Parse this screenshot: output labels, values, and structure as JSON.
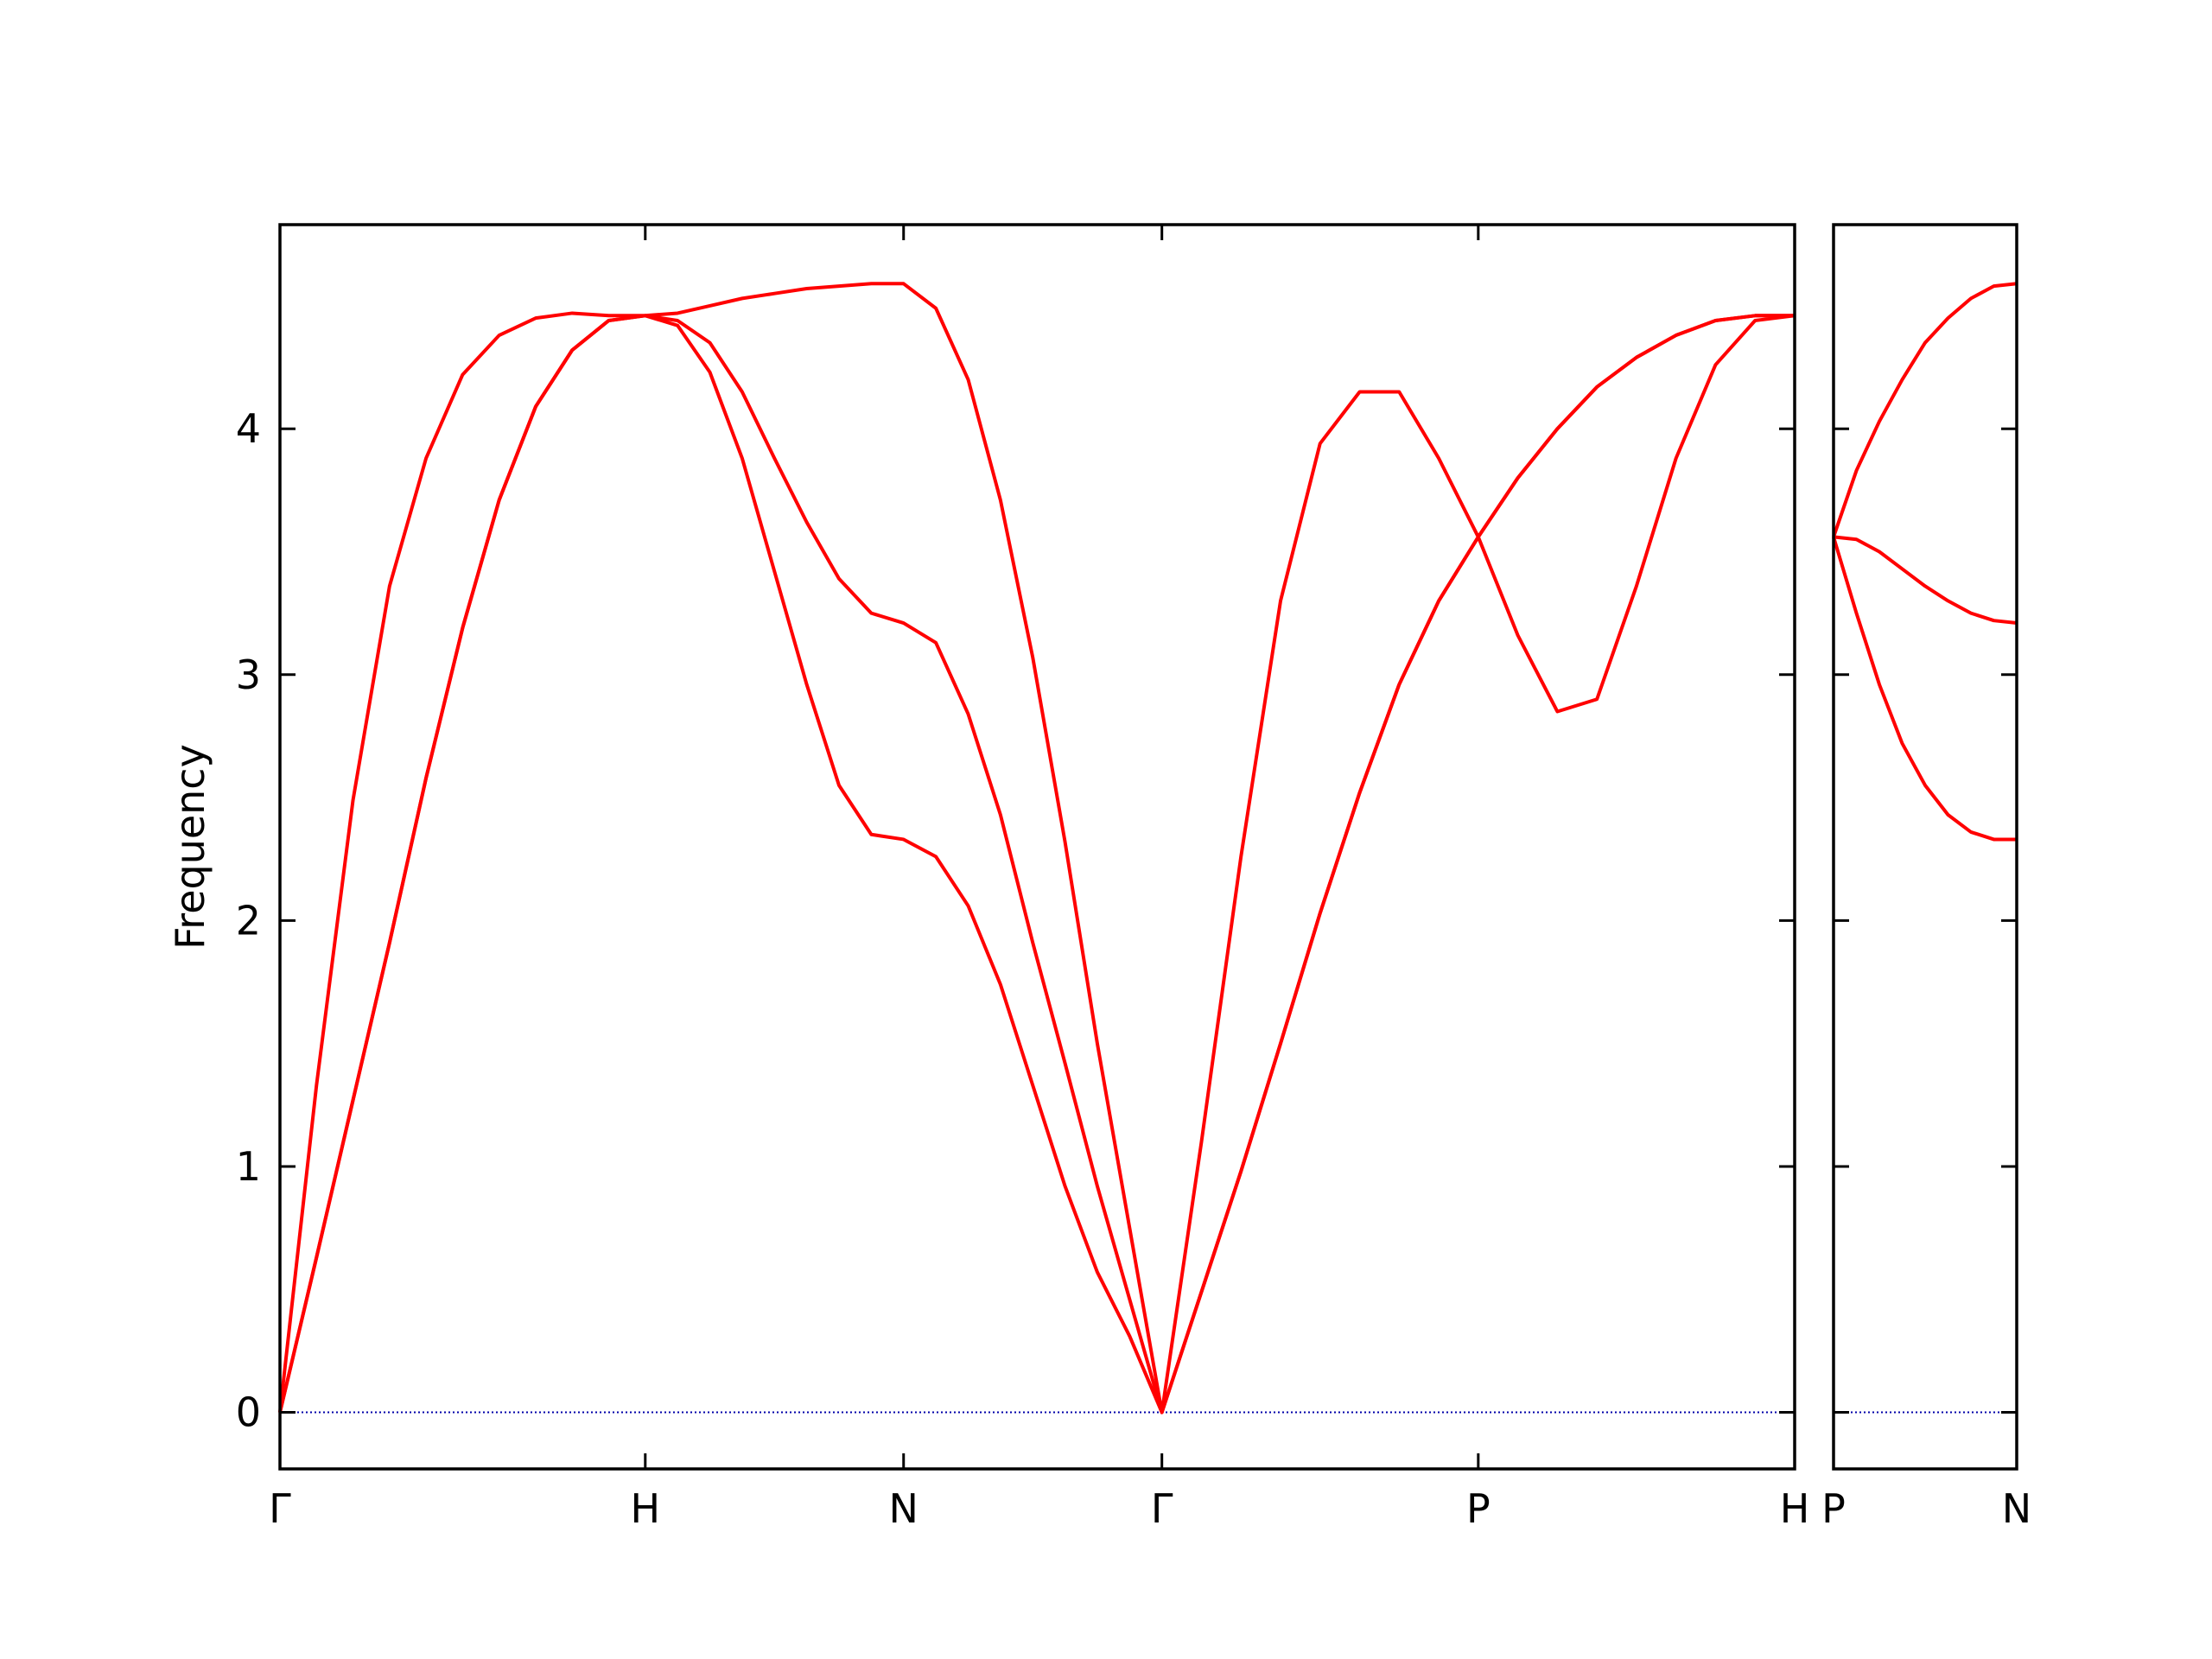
{
  "chart_data": [
    {
      "type": "line",
      "ylabel": "Frequency",
      "x": [
        0,
        0.1,
        0.2,
        0.3,
        0.4,
        0.5,
        0.6,
        0.7,
        0.8,
        0.9,
        1.0,
        1.0884,
        1.1768,
        1.2652,
        1.3536,
        1.4419,
        1.5303,
        1.6187,
        1.7071,
        1.7955,
        1.8839,
        1.9723,
        2.0607,
        2.149,
        2.2374,
        2.3258,
        2.4142,
        2.5225,
        2.6307,
        2.739,
        2.8472,
        2.9555,
        3.0637,
        3.172,
        3.2802,
        3.3885,
        3.4967,
        3.605,
        3.7132,
        3.8215,
        3.9297,
        4.038,
        4.1463
      ],
      "series": [
        {
          "color": "#ff0000",
          "values": [
            0,
            0.63,
            1.27,
            1.91,
            2.58,
            3.19,
            3.71,
            4.09,
            4.32,
            4.44,
            4.46,
            4.42,
            4.23,
            3.88,
            3.42,
            2.96,
            2.55,
            2.35,
            2.33,
            2.26,
            2.06,
            1.74,
            1.33,
            0.92,
            0.57,
            0.31,
            0,
            0.49,
            0.98,
            1.5,
            2.03,
            2.52,
            2.96,
            3.3,
            3.56,
            3.8,
            4.0,
            4.17,
            4.29,
            4.38,
            4.44,
            4.46,
            4.46
          ]
        },
        {
          "color": "#ff0000",
          "values": [
            0,
            0.63,
            1.27,
            1.91,
            2.58,
            3.19,
            3.71,
            4.09,
            4.32,
            4.44,
            4.46,
            4.44,
            4.35,
            4.15,
            3.88,
            3.62,
            3.39,
            3.25,
            3.21,
            3.13,
            2.84,
            2.43,
            1.91,
            1.42,
            0.92,
            0.46,
            0,
            0.49,
            0.98,
            1.5,
            2.03,
            2.52,
            2.96,
            3.3,
            3.56,
            3.8,
            4.0,
            4.17,
            4.29,
            4.38,
            4.44,
            4.46,
            4.46
          ]
        },
        {
          "color": "#ff0000",
          "values": [
            0,
            1.33,
            2.49,
            3.36,
            3.88,
            4.22,
            4.38,
            4.45,
            4.47,
            4.46,
            4.46,
            4.47,
            4.5,
            4.53,
            4.55,
            4.57,
            4.58,
            4.59,
            4.59,
            4.49,
            4.2,
            3.71,
            3.07,
            2.32,
            1.5,
            0.75,
            0,
            1.1,
            2.26,
            3.3,
            3.94,
            4.15,
            4.15,
            3.88,
            3.56,
            3.16,
            2.85,
            2.9,
            3.36,
            3.88,
            4.26,
            4.44,
            4.46
          ]
        }
      ],
      "xlim": [
        0,
        4.1463
      ],
      "xticks": [
        {
          "value": 0,
          "label": "Γ"
        },
        {
          "value": 1.0,
          "label": "H"
        },
        {
          "value": 1.7071,
          "label": "N"
        },
        {
          "value": 2.4142,
          "label": "Γ"
        },
        {
          "value": 3.2802,
          "label": "P"
        },
        {
          "value": 4.1463,
          "label": "H"
        }
      ],
      "ylim": [
        -0.23,
        4.83
      ],
      "yticks": [
        0,
        1,
        2,
        3,
        4
      ],
      "hlines": [
        {
          "value": 0,
          "color": "#0000aa"
        }
      ]
    },
    {
      "type": "line",
      "x": [
        0,
        0.0625,
        0.125,
        0.1875,
        0.25,
        0.3125,
        0.375,
        0.4375,
        0.5
      ],
      "series": [
        {
          "color": "#ff0000",
          "values": [
            3.56,
            3.83,
            4.03,
            4.2,
            4.35,
            4.45,
            4.53,
            4.58,
            4.59
          ]
        },
        {
          "color": "#ff0000",
          "values": [
            3.56,
            3.55,
            3.5,
            3.43,
            3.36,
            3.3,
            3.25,
            3.22,
            3.21
          ]
        },
        {
          "color": "#ff0000",
          "values": [
            3.56,
            3.25,
            2.96,
            2.72,
            2.55,
            2.43,
            2.36,
            2.33,
            2.33
          ]
        }
      ],
      "xlim": [
        0,
        0.5
      ],
      "xticks": [
        {
          "value": 0,
          "label": "P"
        },
        {
          "value": 0.5,
          "label": "N"
        }
      ],
      "ylim": [
        -0.23,
        4.83
      ],
      "yticks": [
        0,
        1,
        2,
        3,
        4
      ],
      "hlines": [
        {
          "value": 0,
          "color": "#0000aa"
        }
      ]
    }
  ]
}
